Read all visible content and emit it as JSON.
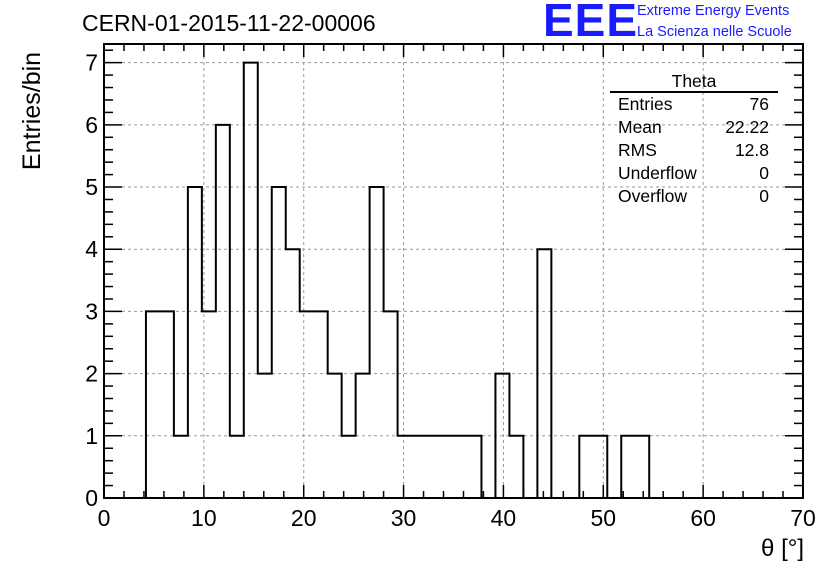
{
  "header": {
    "run_title": "CERN-01-2015-11-22-00006"
  },
  "logo": {
    "mark": "EEE",
    "line1": "Extreme Energy Events",
    "line2": "La Scienza nelle Scuole",
    "color": "#1a1aff"
  },
  "stats_box": {
    "title": "Theta",
    "rows": [
      {
        "label": "Entries",
        "value": "76"
      },
      {
        "label": "Mean",
        "value": "22.22"
      },
      {
        "label": "RMS",
        "value": "12.8"
      },
      {
        "label": "Underflow",
        "value": "0"
      },
      {
        "label": "Overflow",
        "value": "0"
      }
    ]
  },
  "chart_data": {
    "type": "bar",
    "histogram": true,
    "xlabel": "θ [°]",
    "ylabel": "Entries/bin",
    "xlim": [
      0,
      70
    ],
    "ylim": [
      0,
      7.3
    ],
    "x_ticks": [
      0,
      10,
      20,
      30,
      40,
      50,
      60,
      70
    ],
    "y_ticks": [
      0,
      1,
      2,
      3,
      4,
      5,
      6,
      7
    ],
    "grid": true,
    "bin_width": 1.4,
    "bin_start": 4.2,
    "values": [
      3,
      3,
      1,
      5,
      3,
      6,
      1,
      7,
      2,
      5,
      4,
      3,
      3,
      2,
      1,
      2,
      5,
      3,
      1,
      1,
      1,
      1,
      1,
      1,
      0,
      2,
      1,
      0,
      4,
      0,
      0,
      1,
      1,
      0,
      1,
      1
    ]
  }
}
